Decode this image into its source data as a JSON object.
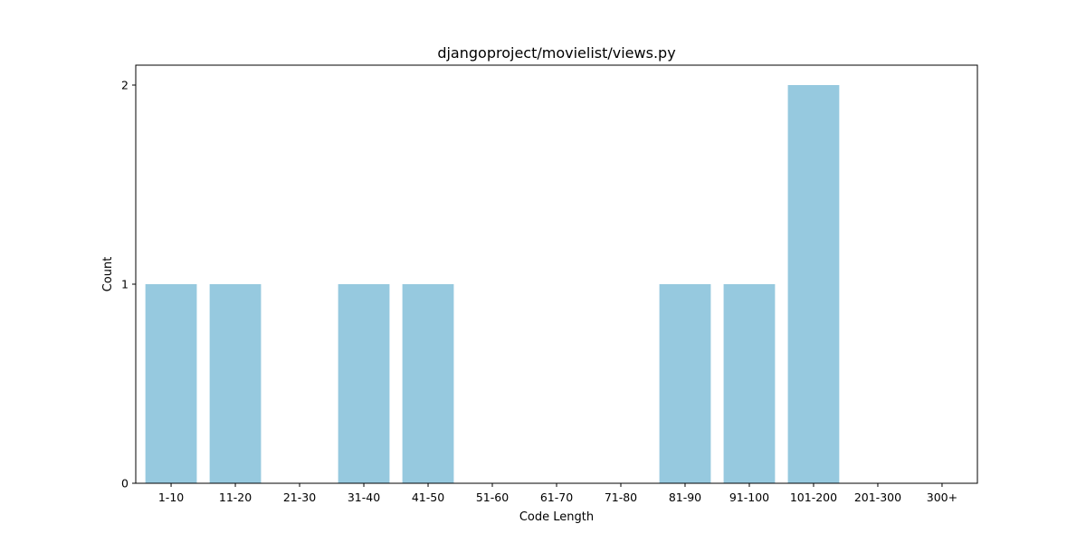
{
  "chart_data": {
    "type": "bar",
    "title": "djangoproject/movielist/views.py",
    "xlabel": "Code Length",
    "ylabel": "Count",
    "categories": [
      "1-10",
      "11-20",
      "21-30",
      "31-40",
      "41-50",
      "51-60",
      "61-70",
      "71-80",
      "81-90",
      "91-100",
      "101-200",
      "201-300",
      "300+"
    ],
    "values": [
      1,
      1,
      0,
      1,
      1,
      0,
      0,
      0,
      1,
      1,
      2,
      0,
      0
    ],
    "ylim": [
      0,
      2.1
    ],
    "yticks": [
      0,
      1,
      2
    ],
    "bar_color": "#96c9df",
    "grid": false,
    "legend": "none"
  }
}
